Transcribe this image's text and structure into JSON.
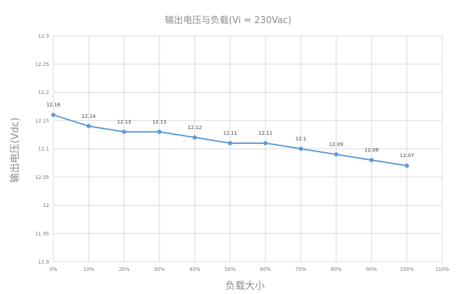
{
  "chart_data": {
    "type": "line",
    "title": "输出电压与负载(Vi = 230Vac)",
    "xlabel": "负载大小",
    "ylabel": "输出电压(Vdc)",
    "x_ticks": [
      "0%",
      "10%",
      "20%",
      "30%",
      "40%",
      "50%",
      "60%",
      "70%",
      "80%",
      "90%",
      "100%",
      "110%"
    ],
    "y_ticks": [
      "11.9",
      "11.95",
      "12",
      "12.05",
      "12.1",
      "12.15",
      "12.2",
      "12.25",
      "12.3"
    ],
    "xlim": [
      0,
      110
    ],
    "ylim": [
      11.9,
      12.3
    ],
    "grid": true,
    "series": [
      {
        "x": [
          0,
          10,
          20,
          30,
          40,
          50,
          60,
          70,
          80,
          90,
          100
        ],
        "values": [
          12.16,
          12.14,
          12.13,
          12.13,
          12.12,
          12.11,
          12.11,
          12.1,
          12.09,
          12.08,
          12.07
        ],
        "labels": [
          "12.16",
          "12.14",
          "12.13",
          "12.13",
          "12.12",
          "12.11",
          "12.11",
          "12.1",
          "12.09",
          "12.08",
          "12.07"
        ],
        "color": "#5b9bd5"
      }
    ]
  }
}
